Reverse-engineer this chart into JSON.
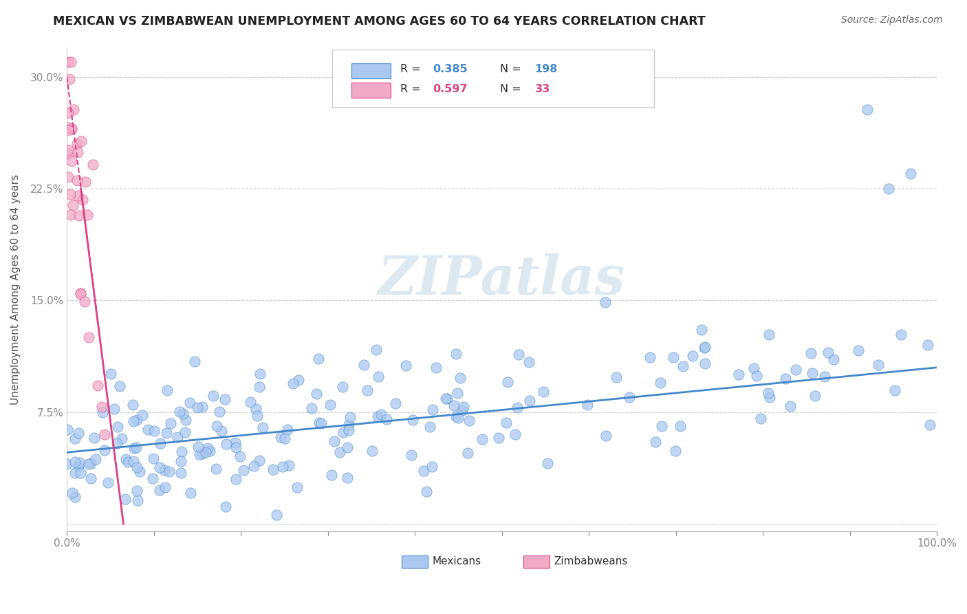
{
  "title": "MEXICAN VS ZIMBABWEAN UNEMPLOYMENT AMONG AGES 60 TO 64 YEARS CORRELATION CHART",
  "source": "Source: ZipAtlas.com",
  "ylabel": "Unemployment Among Ages 60 to 64 years",
  "xlim": [
    0,
    1.0
  ],
  "ylim": [
    -0.005,
    0.32
  ],
  "xticks": [
    0.0,
    0.1,
    0.2,
    0.3,
    0.4,
    0.5,
    0.6,
    0.7,
    0.8,
    0.9,
    1.0
  ],
  "xticklabels": [
    "0.0%",
    "",
    "",
    "",
    "",
    "",
    "",
    "",
    "",
    "",
    "100.0%"
  ],
  "yticks": [
    0.0,
    0.075,
    0.15,
    0.225,
    0.3
  ],
  "yticklabels": [
    "",
    "7.5%",
    "15.0%",
    "22.5%",
    "30.0%"
  ],
  "legend_R_mexican": "0.385",
  "legend_N_mexican": "198",
  "legend_R_zimbabwean": "0.597",
  "legend_N_zimbabwean": "33",
  "mexican_color": "#aac8f0",
  "zimbabwean_color": "#f0aac8",
  "trend_mexican_color": "#4488cc",
  "trend_zimbabwean_color": "#dd4488",
  "watermark": "ZIPatlas",
  "watermark_color": "#dde8f0",
  "trend_mexican_x0": 0.0,
  "trend_mexican_x1": 1.0,
  "trend_mexican_y0": 0.048,
  "trend_mexican_y1": 0.105,
  "trend_zimbabwean_x0": 0.0,
  "trend_zimbabwean_x1": 0.065,
  "trend_zimbabwean_y0": 0.3,
  "trend_zimbabwean_y1": 0.0,
  "mexican_scatter_seed": 7,
  "zimbabwean_scatter_seed": 13
}
